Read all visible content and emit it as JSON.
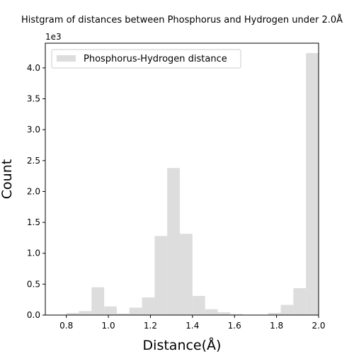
{
  "chart_data": {
    "type": "bar",
    "title": "Histgram of distances between Phosphorus and Hydrogen under 2.0Å",
    "xlabel": "Distance(Å)",
    "ylabel": "Count",
    "offset_label": "1e3",
    "xlim": [
      0.7,
      2.0
    ],
    "ylim": [
      0,
      4400
    ],
    "xticks": [
      "0.8",
      "1.0",
      "1.2",
      "1.4",
      "1.6",
      "1.8",
      "2.0"
    ],
    "yticks": [
      "0.0",
      "0.5",
      "1.0",
      "1.5",
      "2.0",
      "2.5",
      "3.0",
      "3.5",
      "4.0"
    ],
    "grid": false,
    "legend_position": "top-left",
    "bar_color": "#dddddd",
    "series": [
      {
        "name": "Phosphorus-Hydrogen distance",
        "bin_edges": [
          0.8,
          0.86,
          0.92,
          0.98,
          1.04,
          1.1,
          1.16,
          1.22,
          1.28,
          1.34,
          1.4,
          1.46,
          1.52,
          1.58,
          1.64,
          1.7,
          1.76,
          1.82,
          1.88,
          1.94,
          2.0
        ],
        "values": [
          35,
          65,
          450,
          140,
          25,
          120,
          285,
          1280,
          2380,
          1315,
          310,
          95,
          45,
          15,
          5,
          5,
          35,
          165,
          435,
          4240
        ]
      }
    ]
  }
}
